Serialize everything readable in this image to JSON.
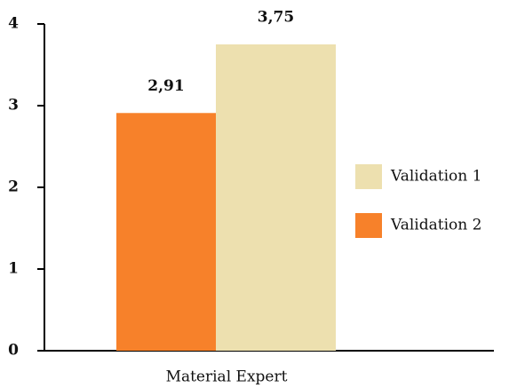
{
  "chart_data": {
    "type": "bar",
    "categories": [
      "Material Expert"
    ],
    "series": [
      {
        "name": "Validation 2",
        "color": "#f7812a",
        "values": [
          2.91
        ],
        "value_labels": [
          "2,91"
        ]
      },
      {
        "name": "Validation 1",
        "color": "#ede0af",
        "values": [
          3.75
        ],
        "value_labels": [
          "3,75"
        ]
      }
    ],
    "ylim": [
      0,
      4
    ],
    "yticks": [
      0,
      1,
      2,
      3,
      4
    ],
    "legend": "right"
  }
}
